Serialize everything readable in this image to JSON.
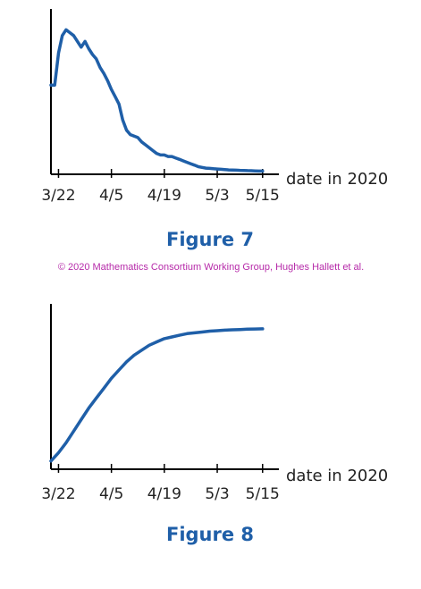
{
  "copyright": "© 2020 Mathematics Consortium Working Group, Hughes Hallett et al.",
  "colors": {
    "curve": "#1f5fa8",
    "axis": "#000000",
    "caption": "#1f5fa8",
    "copyright": "#b62aa9"
  },
  "chart_data": [
    {
      "type": "line",
      "title": "Figure 7",
      "xlabel": "date in 2020",
      "ylabel": "",
      "x_ticks": [
        "3/22",
        "4/5",
        "4/19",
        "5/3",
        "5/15"
      ],
      "x_tick_days": [
        0,
        14,
        28,
        42,
        54
      ],
      "xlim": [
        -2,
        55
      ],
      "ylim": [
        0,
        1
      ],
      "grid": false,
      "series": [
        {
          "x": [
            -2,
            -1,
            0,
            1,
            2,
            3,
            4,
            5,
            6,
            7,
            8,
            9,
            10,
            11,
            12,
            13,
            14,
            15,
            16,
            17,
            18,
            19,
            20,
            21,
            22,
            23,
            24,
            25,
            26,
            27,
            28,
            29,
            30,
            31,
            32,
            33,
            34,
            35,
            36,
            37,
            38,
            39,
            40,
            41,
            42,
            43,
            44,
            45,
            46,
            47,
            48,
            49,
            50,
            51,
            52,
            53,
            54
          ],
          "y": [
            0.6,
            0.6,
            0.82,
            0.94,
            0.98,
            0.96,
            0.94,
            0.9,
            0.86,
            0.9,
            0.85,
            0.81,
            0.78,
            0.72,
            0.68,
            0.63,
            0.57,
            0.52,
            0.47,
            0.36,
            0.29,
            0.26,
            0.25,
            0.24,
            0.21,
            0.19,
            0.17,
            0.15,
            0.13,
            0.12,
            0.12,
            0.11,
            0.11,
            0.1,
            0.09,
            0.08,
            0.07,
            0.06,
            0.05,
            0.04,
            0.035,
            0.03,
            0.028,
            0.026,
            0.024,
            0.022,
            0.02,
            0.018,
            0.017,
            0.016,
            0.015,
            0.014,
            0.013,
            0.012,
            0.011,
            0.01,
            0.01
          ]
        }
      ]
    },
    {
      "type": "line",
      "title": "Figure 8",
      "xlabel": "date in 2020",
      "ylabel": "",
      "x_ticks": [
        "3/22",
        "4/5",
        "4/19",
        "5/3",
        "5/15"
      ],
      "x_tick_days": [
        0,
        14,
        28,
        42,
        54
      ],
      "xlim": [
        -2,
        55
      ],
      "ylim": [
        0,
        1
      ],
      "grid": false,
      "series": [
        {
          "x": [
            -2,
            0,
            2,
            4,
            6,
            8,
            10,
            12,
            14,
            16,
            18,
            20,
            22,
            24,
            26,
            28,
            30,
            32,
            34,
            36,
            38,
            40,
            42,
            44,
            46,
            48,
            50,
            52,
            54
          ],
          "y": [
            0.05,
            0.1,
            0.16,
            0.23,
            0.3,
            0.37,
            0.43,
            0.49,
            0.55,
            0.6,
            0.65,
            0.69,
            0.72,
            0.75,
            0.77,
            0.79,
            0.8,
            0.81,
            0.82,
            0.825,
            0.83,
            0.835,
            0.838,
            0.841,
            0.843,
            0.845,
            0.847,
            0.848,
            0.849
          ]
        }
      ]
    }
  ]
}
